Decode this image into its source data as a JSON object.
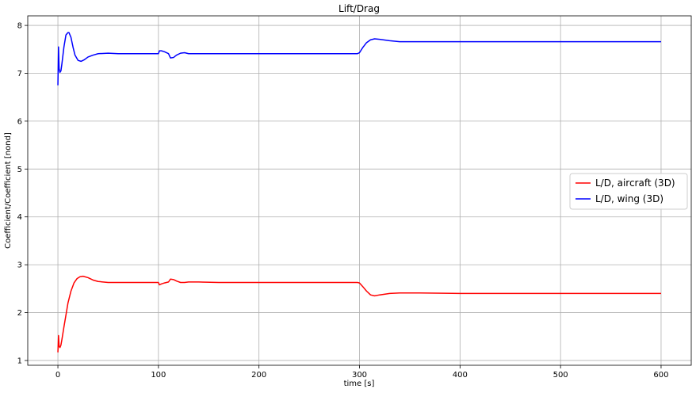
{
  "chart_data": {
    "type": "line",
    "title": "Lift/Drag",
    "xlabel": "time [s]",
    "ylabel": "Coefficient/Coefficient [nond]",
    "xlim": [
      -30,
      630
    ],
    "ylim": [
      0.9,
      8.2
    ],
    "xticks": [
      0,
      100,
      200,
      300,
      400,
      500,
      600
    ],
    "yticks": [
      1,
      2,
      3,
      4,
      5,
      6,
      7,
      8
    ],
    "grid": true,
    "legend_position": "center-right",
    "series": [
      {
        "name": "L/D, aircraft (3D)",
        "color": "#ff0000",
        "x": [
          0,
          0.6,
          1.2,
          2,
          3,
          4,
          6,
          8,
          10,
          13,
          16,
          19,
          22,
          25,
          30,
          35,
          40,
          50,
          60,
          70,
          80,
          90,
          100,
          101,
          103,
          106,
          110,
          112,
          115,
          118,
          122,
          126,
          130,
          140,
          160,
          200,
          250,
          298,
          300,
          303,
          307,
          311,
          315,
          320,
          330,
          340,
          360,
          400,
          500,
          600
        ],
        "y": [
          1.17,
          1.52,
          1.3,
          1.27,
          1.32,
          1.44,
          1.7,
          1.95,
          2.2,
          2.45,
          2.62,
          2.71,
          2.75,
          2.76,
          2.73,
          2.68,
          2.65,
          2.63,
          2.63,
          2.63,
          2.63,
          2.63,
          2.63,
          2.58,
          2.6,
          2.62,
          2.64,
          2.7,
          2.69,
          2.66,
          2.63,
          2.63,
          2.64,
          2.64,
          2.63,
          2.63,
          2.63,
          2.63,
          2.62,
          2.55,
          2.45,
          2.37,
          2.35,
          2.37,
          2.4,
          2.41,
          2.41,
          2.4,
          2.4,
          2.4
        ]
      },
      {
        "name": "L/D, wing (3D)",
        "color": "#0000ff",
        "x": [
          0,
          0.6,
          1.2,
          2,
          3,
          4,
          6,
          8,
          10,
          11,
          13,
          15,
          17,
          20,
          23,
          26,
          30,
          35,
          40,
          50,
          60,
          70,
          80,
          90,
          100,
          101,
          103,
          106,
          110,
          112,
          115,
          118,
          122,
          126,
          130,
          140,
          160,
          200,
          250,
          298,
          300,
          303,
          307,
          311,
          315,
          320,
          330,
          340,
          360,
          400,
          500,
          600
        ],
        "y": [
          6.75,
          7.55,
          7.1,
          7.02,
          7.05,
          7.2,
          7.55,
          7.8,
          7.85,
          7.85,
          7.75,
          7.55,
          7.38,
          7.27,
          7.25,
          7.28,
          7.34,
          7.38,
          7.41,
          7.42,
          7.41,
          7.41,
          7.41,
          7.41,
          7.41,
          7.47,
          7.47,
          7.45,
          7.41,
          7.32,
          7.33,
          7.38,
          7.42,
          7.43,
          7.41,
          7.41,
          7.41,
          7.41,
          7.41,
          7.41,
          7.43,
          7.53,
          7.64,
          7.7,
          7.72,
          7.71,
          7.68,
          7.66,
          7.66,
          7.66,
          7.66,
          7.66
        ]
      }
    ]
  }
}
